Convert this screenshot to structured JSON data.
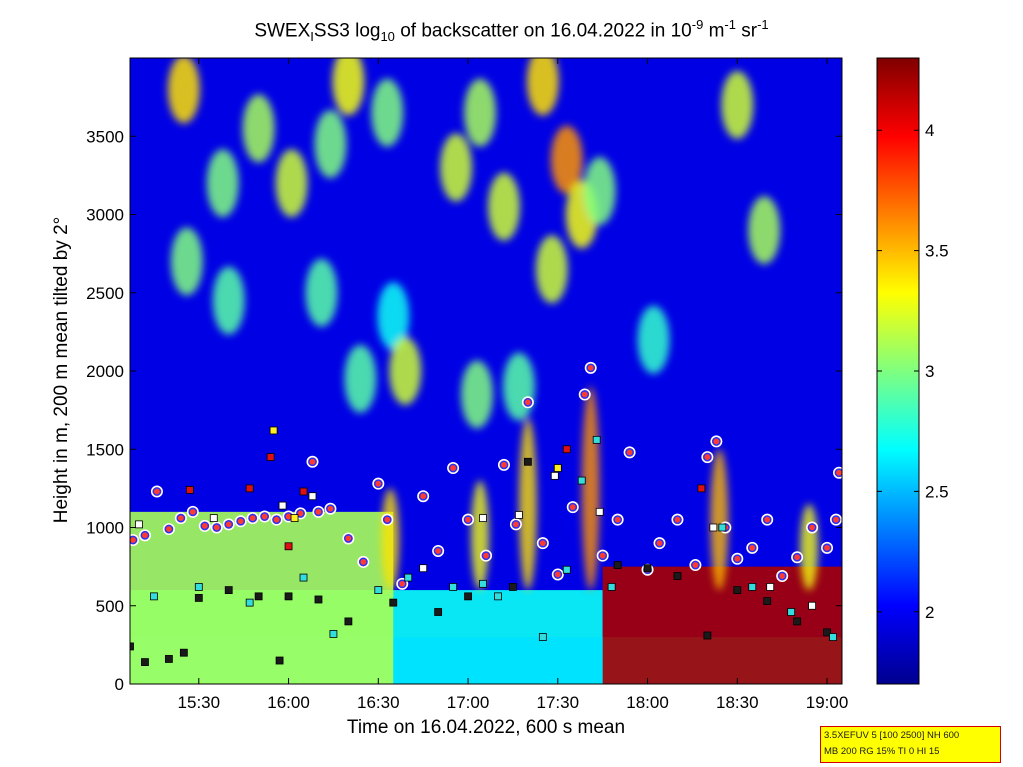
{
  "chart_data": {
    "type": "heatmap",
    "title": {
      "p1": "SWEX",
      "s1": "I",
      "p2": "SS3 log",
      "s2": "10",
      "p3": " of backscatter on 16.04.2022 in 10",
      "e1": "-9",
      "p4": " m",
      "e2": "-1",
      "p5": " sr",
      "e3": "-1"
    },
    "xlabel": "Time on 16.04.2022, 600 s mean",
    "ylabel": "Height in m, 200 m mean tilted by 2°",
    "x_range": [
      "15:07",
      "19:05"
    ],
    "x_ticks": [
      "15:30",
      "16:00",
      "16:30",
      "17:00",
      "17:30",
      "18:00",
      "18:30",
      "19:00"
    ],
    "ylim": [
      0,
      4000
    ],
    "y_ticks": [
      0,
      500,
      1000,
      1500,
      2000,
      2500,
      3000,
      3500
    ],
    "colorbar": {
      "range": [
        1.7,
        4.3
      ],
      "ticks": [
        "2",
        "2.5",
        "3",
        "3.5",
        "4"
      ],
      "colormap": "jet"
    },
    "annotation": {
      "line1": "3.5XEFUV 5 [100 2500] NH 600",
      "line2": "MB 200 RG 15% TI 0 HI 15"
    },
    "background_level": 1.95,
    "layers": [
      {
        "name": "surface-boundary-layer",
        "x_start": "15:07",
        "x_end": "17:45",
        "top_m": 600,
        "value": 2.7
      },
      {
        "name": "near-surface-haze",
        "x_start": "15:07",
        "x_end": "19:05",
        "top_m": 300,
        "value": 2.6
      },
      {
        "name": "residual-aerosol-layer",
        "x_start": "17:45",
        "x_end": "19:05",
        "top_m": 750,
        "value": 4.2
      },
      {
        "name": "mid-level-cloud-band",
        "x_start": "15:07",
        "x_end": "16:35",
        "top_m": 1100,
        "value": 3.1
      }
    ],
    "clouds": [
      {
        "t": "15:25",
        "h": 3800,
        "value": 3.4
      },
      {
        "t": "15:38",
        "h": 3200,
        "value": 3.0
      },
      {
        "t": "15:50",
        "h": 3550,
        "value": 3.1
      },
      {
        "t": "16:01",
        "h": 3200,
        "value": 3.2
      },
      {
        "t": "16:14",
        "h": 3450,
        "value": 3.0
      },
      {
        "t": "16:20",
        "h": 3850,
        "value": 3.3
      },
      {
        "t": "16:33",
        "h": 3650,
        "value": 3.0
      },
      {
        "t": "16:56",
        "h": 3300,
        "value": 3.2
      },
      {
        "t": "17:04",
        "h": 3650,
        "value": 3.1
      },
      {
        "t": "17:12",
        "h": 3050,
        "value": 3.2
      },
      {
        "t": "17:25",
        "h": 3850,
        "value": 3.4
      },
      {
        "t": "17:33",
        "h": 3350,
        "value": 3.6
      },
      {
        "t": "17:38",
        "h": 3000,
        "value": 3.3
      },
      {
        "t": "17:44",
        "h": 3150,
        "value": 3.0
      },
      {
        "t": "18:30",
        "h": 3700,
        "value": 3.2
      },
      {
        "t": "18:39",
        "h": 2900,
        "value": 3.1
      },
      {
        "t": "15:26",
        "h": 2700,
        "value": 3.0
      },
      {
        "t": "15:40",
        "h": 2450,
        "value": 2.9
      },
      {
        "t": "16:11",
        "h": 2500,
        "value": 2.9
      },
      {
        "t": "16:35",
        "h": 2350,
        "value": 2.7
      },
      {
        "t": "16:24",
        "h": 1950,
        "value": 2.9
      },
      {
        "t": "16:39",
        "h": 2000,
        "value": 3.2
      },
      {
        "t": "17:03",
        "h": 1850,
        "value": 3.0
      },
      {
        "t": "17:17",
        "h": 1900,
        "value": 2.9
      },
      {
        "t": "17:28",
        "h": 2650,
        "value": 3.2
      },
      {
        "t": "18:02",
        "h": 2200,
        "value": 2.8
      }
    ],
    "plumes": [
      {
        "t": "16:34",
        "h": 1250,
        "value": 3.4
      },
      {
        "t": "17:04",
        "h": 1300,
        "value": 3.3
      },
      {
        "t": "17:20",
        "h": 1700,
        "value": 3.4
      },
      {
        "t": "17:41",
        "h": 1900,
        "value": 3.6
      },
      {
        "t": "18:24",
        "h": 1500,
        "value": 3.5
      },
      {
        "t": "18:54",
        "h": 1150,
        "value": 3.3
      }
    ],
    "series": [
      {
        "name": "cloud-base-circles",
        "marker": "circle",
        "points": [
          {
            "t": "15:08",
            "h": 920
          },
          {
            "t": "15:12",
            "h": 950
          },
          {
            "t": "15:16",
            "h": 1230
          },
          {
            "t": "15:20",
            "h": 990
          },
          {
            "t": "15:24",
            "h": 1060
          },
          {
            "t": "15:28",
            "h": 1100
          },
          {
            "t": "15:32",
            "h": 1010
          },
          {
            "t": "15:36",
            "h": 1000
          },
          {
            "t": "15:40",
            "h": 1020
          },
          {
            "t": "15:44",
            "h": 1040
          },
          {
            "t": "15:48",
            "h": 1060
          },
          {
            "t": "15:52",
            "h": 1070
          },
          {
            "t": "15:56",
            "h": 1050
          },
          {
            "t": "16:00",
            "h": 1070
          },
          {
            "t": "16:04",
            "h": 1090
          },
          {
            "t": "16:08",
            "h": 1420
          },
          {
            "t": "16:10",
            "h": 1100
          },
          {
            "t": "16:14",
            "h": 1120
          },
          {
            "t": "16:20",
            "h": 930
          },
          {
            "t": "16:25",
            "h": 780
          },
          {
            "t": "16:30",
            "h": 1280
          },
          {
            "t": "16:33",
            "h": 1050
          },
          {
            "t": "16:38",
            "h": 640
          },
          {
            "t": "16:45",
            "h": 1200
          },
          {
            "t": "16:50",
            "h": 850
          },
          {
            "t": "16:55",
            "h": 1380
          },
          {
            "t": "17:00",
            "h": 1050
          },
          {
            "t": "17:06",
            "h": 820
          },
          {
            "t": "17:12",
            "h": 1400
          },
          {
            "t": "17:16",
            "h": 1020
          },
          {
            "t": "17:20",
            "h": 1800
          },
          {
            "t": "17:25",
            "h": 900
          },
          {
            "t": "17:30",
            "h": 700
          },
          {
            "t": "17:35",
            "h": 1130
          },
          {
            "t": "17:39",
            "h": 1850
          },
          {
            "t": "17:41",
            "h": 2020
          },
          {
            "t": "17:45",
            "h": 820
          },
          {
            "t": "17:50",
            "h": 1050
          },
          {
            "t": "17:54",
            "h": 1480
          },
          {
            "t": "18:00",
            "h": 730
          },
          {
            "t": "18:04",
            "h": 900
          },
          {
            "t": "18:10",
            "h": 1050
          },
          {
            "t": "18:16",
            "h": 760
          },
          {
            "t": "18:20",
            "h": 1450
          },
          {
            "t": "18:23",
            "h": 1550
          },
          {
            "t": "18:26",
            "h": 1000
          },
          {
            "t": "18:30",
            "h": 800
          },
          {
            "t": "18:35",
            "h": 870
          },
          {
            "t": "18:40",
            "h": 1050
          },
          {
            "t": "18:45",
            "h": 690
          },
          {
            "t": "18:50",
            "h": 810
          },
          {
            "t": "18:55",
            "h": 1000
          },
          {
            "t": "19:00",
            "h": 870
          },
          {
            "t": "19:03",
            "h": 1050
          },
          {
            "t": "19:04",
            "h": 1350
          }
        ]
      },
      {
        "name": "layer-top-dark-squares",
        "marker": "square",
        "color": "#1a1a1a",
        "points": [
          {
            "t": "15:07",
            "h": 240
          },
          {
            "t": "15:12",
            "h": 140
          },
          {
            "t": "15:20",
            "h": 160
          },
          {
            "t": "15:25",
            "h": 200
          },
          {
            "t": "15:30",
            "h": 550
          },
          {
            "t": "15:40",
            "h": 600
          },
          {
            "t": "15:50",
            "h": 560
          },
          {
            "t": "15:57",
            "h": 150
          },
          {
            "t": "16:00",
            "h": 560
          },
          {
            "t": "16:10",
            "h": 540
          },
          {
            "t": "16:20",
            "h": 400
          },
          {
            "t": "16:35",
            "h": 520
          },
          {
            "t": "16:50",
            "h": 460
          },
          {
            "t": "17:00",
            "h": 560
          },
          {
            "t": "17:15",
            "h": 620
          },
          {
            "t": "17:20",
            "h": 1420
          },
          {
            "t": "17:50",
            "h": 760
          },
          {
            "t": "18:00",
            "h": 740
          },
          {
            "t": "18:10",
            "h": 690
          },
          {
            "t": "18:20",
            "h": 310
          },
          {
            "t": "18:30",
            "h": 600
          },
          {
            "t": "18:40",
            "h": 530
          },
          {
            "t": "18:50",
            "h": 400
          },
          {
            "t": "19:00",
            "h": 330
          }
        ]
      },
      {
        "name": "layer-top-cyan-squares",
        "marker": "square",
        "color": "#33dddd",
        "points": [
          {
            "t": "15:15",
            "h": 560
          },
          {
            "t": "15:30",
            "h": 620
          },
          {
            "t": "15:47",
            "h": 520
          },
          {
            "t": "16:05",
            "h": 680
          },
          {
            "t": "16:15",
            "h": 320
          },
          {
            "t": "16:30",
            "h": 600
          },
          {
            "t": "16:40",
            "h": 680
          },
          {
            "t": "16:55",
            "h": 620
          },
          {
            "t": "17:05",
            "h": 640
          },
          {
            "t": "17:10",
            "h": 560
          },
          {
            "t": "17:25",
            "h": 300
          },
          {
            "t": "17:33",
            "h": 730
          },
          {
            "t": "17:38",
            "h": 1300
          },
          {
            "t": "17:43",
            "h": 1560
          },
          {
            "t": "17:48",
            "h": 620
          },
          {
            "t": "18:25",
            "h": 1000
          },
          {
            "t": "18:35",
            "h": 620
          },
          {
            "t": "18:48",
            "h": 460
          },
          {
            "t": "19:02",
            "h": 300
          }
        ]
      },
      {
        "name": "layer-top-white-squares",
        "marker": "square",
        "color": "#ffffff",
        "points": [
          {
            "t": "15:10",
            "h": 1020
          },
          {
            "t": "15:35",
            "h": 1060
          },
          {
            "t": "15:58",
            "h": 1140
          },
          {
            "t": "16:08",
            "h": 1200
          },
          {
            "t": "16:45",
            "h": 740
          },
          {
            "t": "17:05",
            "h": 1060
          },
          {
            "t": "17:17",
            "h": 1080
          },
          {
            "t": "17:29",
            "h": 1330
          },
          {
            "t": "17:44",
            "h": 1100
          },
          {
            "t": "18:22",
            "h": 1000
          },
          {
            "t": "18:41",
            "h": 620
          },
          {
            "t": "18:55",
            "h": 500
          }
        ]
      },
      {
        "name": "layer-top-red-squares",
        "marker": "square",
        "color": "#dd1111",
        "points": [
          {
            "t": "15:27",
            "h": 1240
          },
          {
            "t": "15:47",
            "h": 1250
          },
          {
            "t": "15:54",
            "h": 1450
          },
          {
            "t": "16:00",
            "h": 880
          },
          {
            "t": "16:05",
            "h": 1230
          },
          {
            "t": "17:33",
            "h": 1500
          },
          {
            "t": "18:18",
            "h": 1250
          }
        ]
      },
      {
        "name": "layer-top-yellow-squares",
        "marker": "square",
        "color": "#ffee22",
        "points": [
          {
            "t": "15:55",
            "h": 1620
          },
          {
            "t": "16:02",
            "h": 1060
          },
          {
            "t": "17:30",
            "h": 1380
          }
        ]
      }
    ]
  }
}
